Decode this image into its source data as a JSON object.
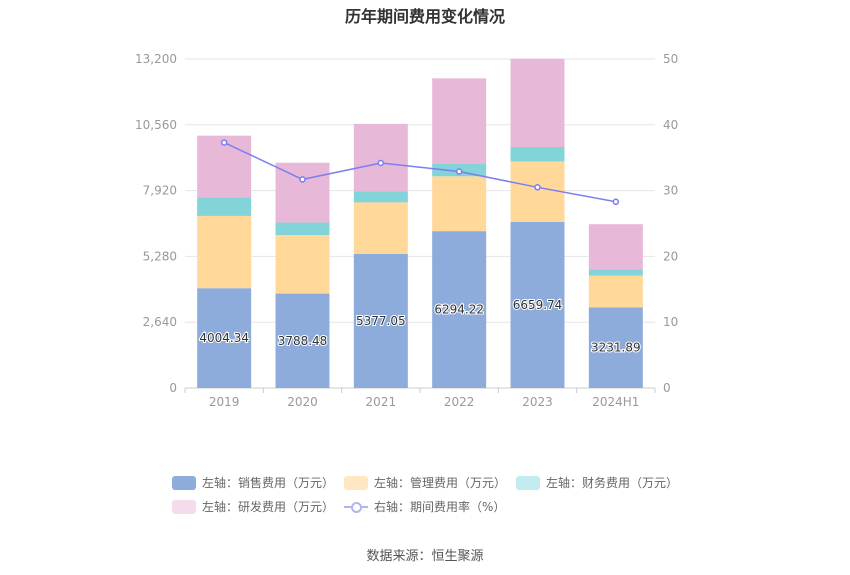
{
  "chart_data": {
    "type": "bar",
    "title": "历年期间费用变化情况",
    "categories": [
      "2019",
      "2020",
      "2021",
      "2022",
      "2023",
      "2024H1"
    ],
    "stacked": true,
    "series": [
      {
        "name": "左轴：销售费用（万元）",
        "axis": "left",
        "color": "#8eacdb",
        "values": [
          4004.34,
          3788.48,
          5377.05,
          6294.22,
          6659.74,
          3231.89
        ],
        "labels": [
          "4004.34",
          "3788.48",
          "5377.05",
          "6294.22",
          "6659.74",
          "3231.89"
        ]
      },
      {
        "name": "左轴：管理费用（万元）",
        "axis": "left",
        "color": "#ffd89a",
        "values": [
          2900,
          2350,
          2070,
          2200,
          2430,
          1280
        ]
      },
      {
        "name": "左轴：财务费用（万元）",
        "axis": "left",
        "color": "#82d4d8",
        "values": [
          750,
          500,
          450,
          520,
          580,
          240
        ]
      },
      {
        "name": "左轴：研发费用（万元）",
        "axis": "left",
        "color": "#e8b8d8",
        "values": [
          2470,
          2400,
          2700,
          3410,
          3540,
          1820
        ]
      },
      {
        "name": "右轴：期间费用率（%）",
        "axis": "right",
        "type": "line",
        "color": "#7b7ef0",
        "values": [
          37.3,
          31.7,
          34.2,
          32.9,
          30.5,
          28.3
        ]
      }
    ],
    "left_axis": {
      "min": 0,
      "max": 13200,
      "ticks": [
        "0",
        "2,640",
        "5,280",
        "7,920",
        "10,560",
        "13,200"
      ]
    },
    "right_axis": {
      "min": 0,
      "max": 50,
      "ticks": [
        "0",
        "10",
        "20",
        "30",
        "40",
        "50"
      ]
    },
    "grid": true,
    "legend_position": "bottom"
  },
  "source_text": "数据来源：恒生聚源"
}
